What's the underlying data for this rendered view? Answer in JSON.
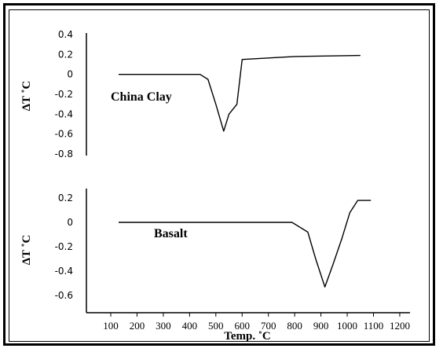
{
  "chart_data": {
    "type": "line",
    "xlabel": "Temp. ˚C",
    "x_ticks": [
      "100",
      "200",
      "300",
      "400",
      "500",
      "600",
      "700",
      "800",
      "900",
      "1000",
      "1100",
      "1200"
    ],
    "panels": [
      {
        "ylabel": "ΔT ˚C",
        "y_ticks": [
          "0.4",
          "0.2",
          "0",
          "-0.2",
          "-0.4",
          "-0.6",
          "-0.8"
        ],
        "ylim": [
          -0.8,
          0.4
        ],
        "series": [
          {
            "name": "China Clay",
            "x": [
              130,
              440,
              470,
              500,
              530,
              550,
              580,
              600,
              800,
              1050
            ],
            "y": [
              0,
              0,
              -0.05,
              -0.3,
              -0.57,
              -0.4,
              -0.3,
              0.15,
              0.18,
              0.19
            ]
          }
        ]
      },
      {
        "ylabel": "ΔT ˚C",
        "y_ticks": [
          "0.2",
          "0",
          "-0.2",
          "-0.4",
          "-0.6"
        ],
        "ylim": [
          -0.6,
          0.2
        ],
        "series": [
          {
            "name": "Basalt",
            "x": [
              130,
              790,
              850,
              880,
              915,
              945,
              980,
              1010,
              1040,
              1090
            ],
            "y": [
              0,
              0,
              -0.08,
              -0.3,
              -0.53,
              -0.35,
              -0.13,
              0.08,
              0.18,
              0.18
            ]
          }
        ]
      }
    ]
  }
}
